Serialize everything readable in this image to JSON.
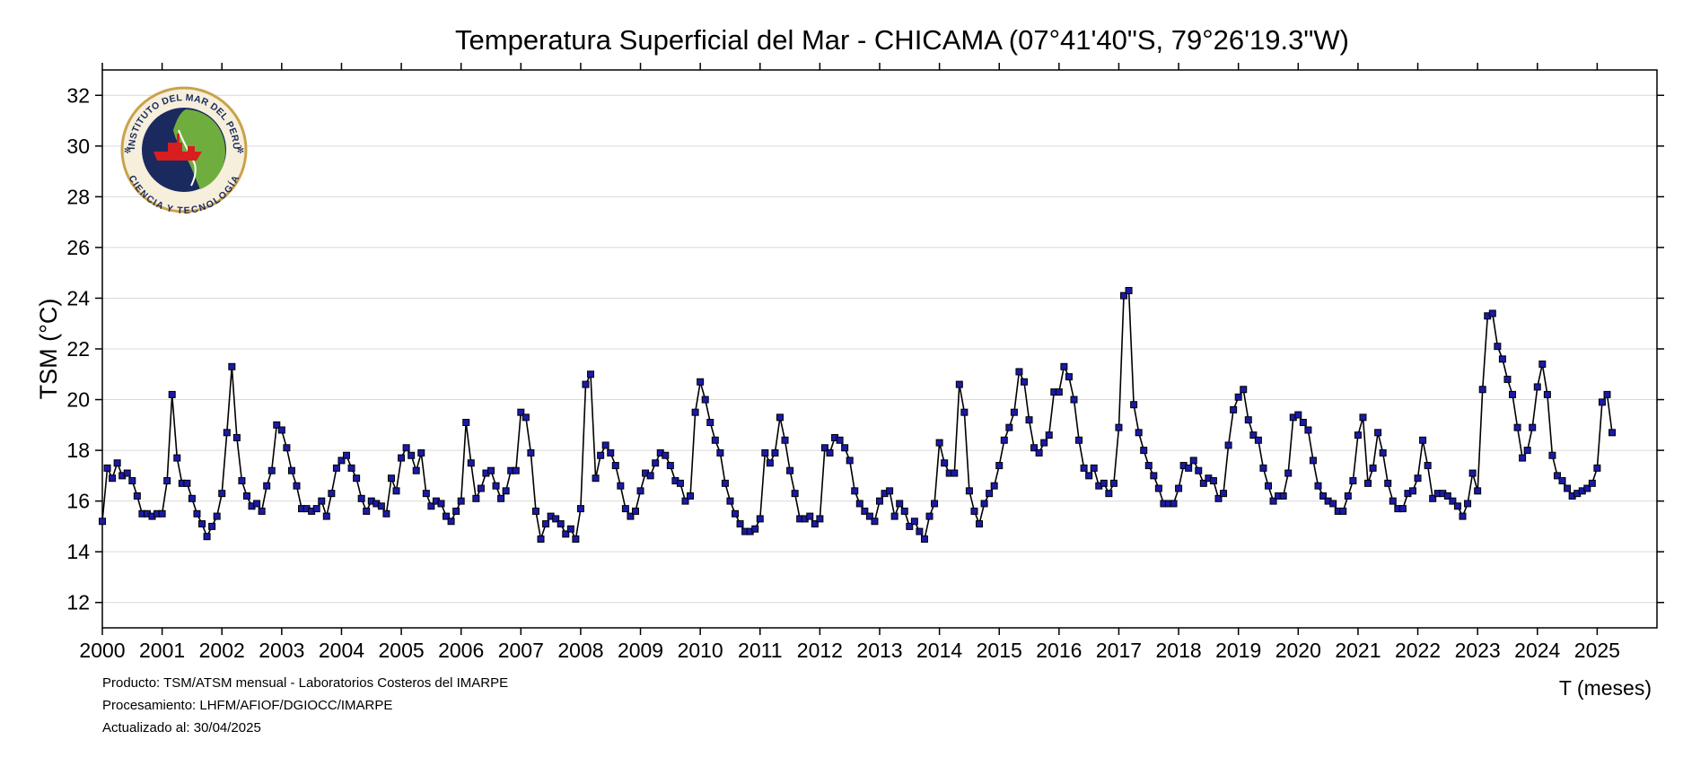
{
  "chart_data": {
    "type": "line",
    "title": "Temperatura Superficial del Mar - CHICAMA (07°41'40\"S, 79°26'19.3\"W)",
    "ylabel": "TSM (°C)",
    "xlabel": "T (meses)",
    "ylim": [
      11,
      33
    ],
    "yticks": [
      12,
      14,
      16,
      18,
      20,
      22,
      24,
      26,
      28,
      30,
      32
    ],
    "xlim": [
      2000,
      2026
    ],
    "xticks": [
      2000,
      2001,
      2002,
      2003,
      2004,
      2005,
      2006,
      2007,
      2008,
      2009,
      2010,
      2011,
      2012,
      2013,
      2014,
      2015,
      2016,
      2017,
      2018,
      2019,
      2020,
      2021,
      2022,
      2023,
      2024,
      2025
    ],
    "grid": "horizontal",
    "legend": "none",
    "line_color": "#000000",
    "marker_color": "#1a1aa6",
    "start": "2000-01",
    "frequency": "monthly",
    "series": [
      {
        "values": [
          15.2,
          17.3,
          16.9,
          17.5,
          17.0,
          17.1,
          16.8,
          16.2,
          15.5,
          15.5,
          15.4,
          15.5,
          15.5,
          16.8,
          20.2,
          17.7,
          16.7,
          16.7,
          16.1,
          15.5,
          15.1,
          14.6,
          15.0,
          15.4,
          16.3,
          18.7,
          21.3,
          18.5,
          16.8,
          16.2,
          15.8,
          15.9,
          15.6,
          16.6,
          17.2,
          19.0,
          18.8,
          18.1,
          17.2,
          16.6,
          15.7,
          15.7,
          15.6,
          15.7,
          16.0,
          15.4,
          16.3,
          17.3,
          17.6,
          17.8,
          17.3,
          16.9,
          16.1,
          15.6,
          16.0,
          15.9,
          15.8,
          15.5,
          16.9,
          16.4,
          17.7,
          18.1,
          17.8,
          17.2,
          17.9,
          16.3,
          15.8,
          16.0,
          15.9,
          15.4,
          15.2,
          15.6,
          16.0,
          19.1,
          17.5,
          16.1,
          16.5,
          17.1,
          17.2,
          16.6,
          16.1,
          16.4,
          17.2,
          17.2,
          19.5,
          19.3,
          17.9,
          15.6,
          14.5,
          15.1,
          15.4,
          15.3,
          15.1,
          14.7,
          14.9,
          14.5,
          15.7,
          20.6,
          21.0,
          16.9,
          17.8,
          18.2,
          17.9,
          17.4,
          16.6,
          15.7,
          15.4,
          15.6,
          16.4,
          17.1,
          17.0,
          17.5,
          17.9,
          17.8,
          17.4,
          16.8,
          16.7,
          16.0,
          16.2,
          19.5,
          20.7,
          20.0,
          19.1,
          18.4,
          17.9,
          16.7,
          16.0,
          15.5,
          15.1,
          14.8,
          14.8,
          14.9,
          15.3,
          17.9,
          17.5,
          17.9,
          19.3,
          18.4,
          17.2,
          16.3,
          15.3,
          15.3,
          15.4,
          15.1,
          15.3,
          18.1,
          17.9,
          18.5,
          18.4,
          18.1,
          17.6,
          16.4,
          15.9,
          15.6,
          15.4,
          15.2,
          16.0,
          16.3,
          16.4,
          15.4,
          15.9,
          15.6,
          15.0,
          15.2,
          14.8,
          14.5,
          15.4,
          15.9,
          18.3,
          17.5,
          17.1,
          17.1,
          20.6,
          19.5,
          16.4,
          15.6,
          15.1,
          15.9,
          16.3,
          16.6,
          17.4,
          18.4,
          18.9,
          19.5,
          21.1,
          20.7,
          19.2,
          18.1,
          17.9,
          18.3,
          18.6,
          20.3,
          20.3,
          21.3,
          20.9,
          20.0,
          18.4,
          17.3,
          17.0,
          17.3,
          16.6,
          16.7,
          16.3,
          16.7,
          18.9,
          24.1,
          24.3,
          19.8,
          18.7,
          18.0,
          17.4,
          17.0,
          16.5,
          15.9,
          15.9,
          15.9,
          16.5,
          17.4,
          17.3,
          17.6,
          17.2,
          16.7,
          16.9,
          16.8,
          16.1,
          16.3,
          18.2,
          19.6,
          20.1,
          20.4,
          19.2,
          18.6,
          18.4,
          17.3,
          16.6,
          16.0,
          16.2,
          16.2,
          17.1,
          19.3,
          19.4,
          19.1,
          18.8,
          17.6,
          16.6,
          16.2,
          16.0,
          15.9,
          15.6,
          15.6,
          16.2,
          16.8,
          18.6,
          19.3,
          16.7,
          17.3,
          18.7,
          17.9,
          16.7,
          16.0,
          15.7,
          15.7,
          16.3,
          16.4,
          16.9,
          18.4,
          17.4,
          16.1,
          16.3,
          16.3,
          16.2,
          16.0,
          15.8,
          15.4,
          15.9,
          17.1,
          16.4,
          20.4,
          23.3,
          23.4,
          22.1,
          21.6,
          20.8,
          20.2,
          18.9,
          17.7,
          18.0,
          18.9,
          20.5,
          21.4,
          20.2,
          17.8,
          17.0,
          16.8,
          16.5,
          16.2,
          16.3,
          16.4,
          16.5,
          16.7,
          17.3,
          19.9,
          20.2,
          18.7
        ]
      }
    ]
  },
  "footer": {
    "line1": "Producto: TSM/ATSM mensual - Laboratorios Costeros del IMARPE",
    "line2": "Procesamiento: LHFM/AFIOF/DGIOCC/IMARPE",
    "line3": "Actualizado al: 30/04/2025"
  },
  "logo": {
    "name": "imarpe-seal",
    "top_text": "INSTITUTO DEL MAR DEL PERÚ",
    "bottom_text": "CIENCIA Y TECNOLOGÍA",
    "colors": {
      "ring": "#c9a24a",
      "navy": "#1b2a5e",
      "land": "#6fae3e",
      "ship": "#d81e1e"
    }
  }
}
